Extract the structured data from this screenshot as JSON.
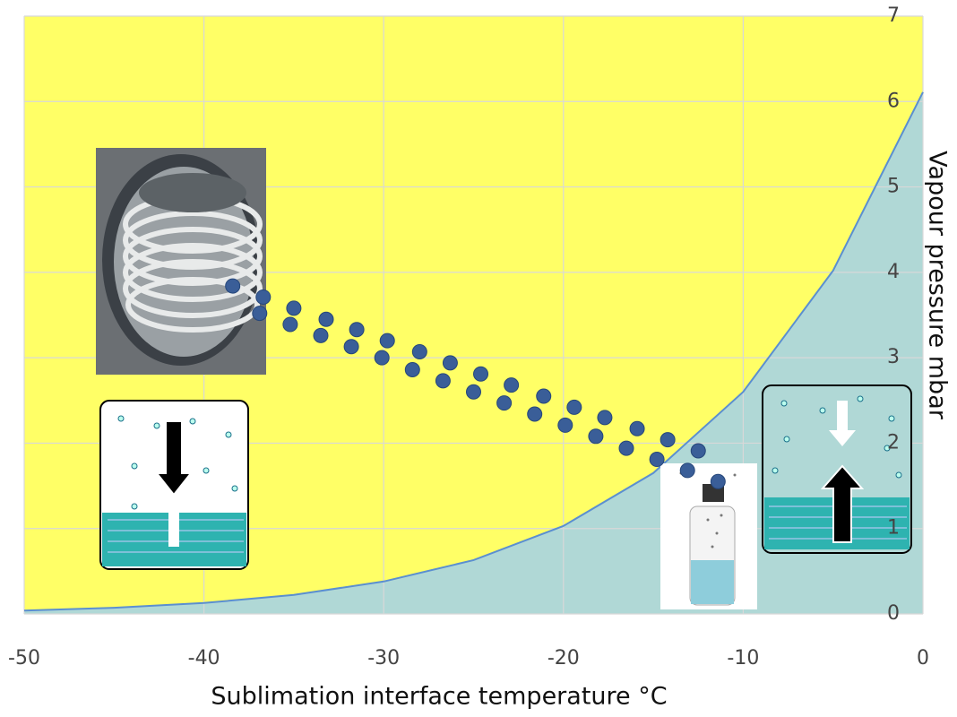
{
  "chart_data": {
    "type": "area",
    "x_label": "Sublimation interface temperature °C",
    "y_label": "Vapour pressure mbar",
    "x": [
      -50,
      -45,
      -40,
      -35,
      -30,
      -25,
      -20,
      -15,
      -10,
      -5,
      0
    ],
    "series": [
      {
        "color": "#b0d8d6",
        "line_color": "#5b8fd0",
        "values": [
          0.039,
          0.072,
          0.128,
          0.223,
          0.38,
          0.63,
          1.03,
          1.65,
          2.6,
          4.02,
          6.11
        ]
      }
    ],
    "background_color": "#ffff66",
    "markers": {
      "color": "#3a5e98",
      "rows": [
        {
          "x": [
            -38.4,
            -36.7,
            -35.0,
            -33.2,
            -31.5,
            -29.8,
            -28.0,
            -26.3,
            -24.6,
            -22.9,
            -21.1,
            -19.4,
            -17.7,
            -15.9,
            -14.2,
            -12.5
          ],
          "y": [
            3.84,
            3.71,
            3.58,
            3.45,
            3.33,
            3.2,
            3.07,
            2.94,
            2.81,
            2.68,
            2.55,
            2.42,
            2.3,
            2.17,
            2.04,
            1.91
          ]
        },
        {
          "x": [
            -36.9,
            -35.2,
            -33.5,
            -31.8,
            -30.1,
            -28.4,
            -26.7,
            -25.0,
            -23.3,
            -21.6,
            -19.9,
            -18.2,
            -16.5,
            -14.8,
            -13.1,
            -11.4
          ],
          "y": [
            3.52,
            3.39,
            3.26,
            3.13,
            3.0,
            2.86,
            2.73,
            2.6,
            2.47,
            2.34,
            2.21,
            2.08,
            1.94,
            1.81,
            1.68,
            1.55
          ]
        }
      ]
    },
    "xlim": [
      -50,
      0
    ],
    "ylim": [
      0,
      7
    ],
    "xticks": [
      -50,
      -40,
      -30,
      -20,
      -10,
      0
    ],
    "yticks": [
      0,
      1,
      2,
      3,
      4,
      5,
      6,
      7
    ],
    "grid": true
  }
}
